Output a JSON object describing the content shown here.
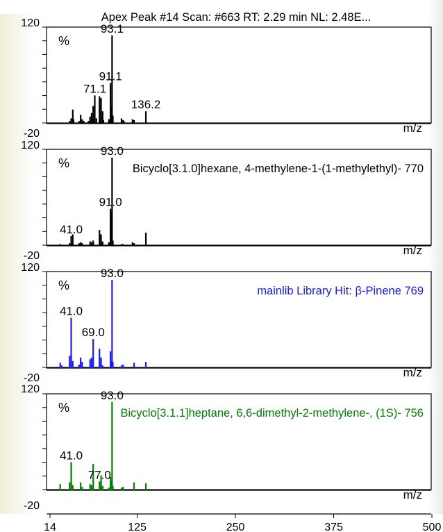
{
  "chart_data": {
    "type": "stacked-spectra",
    "title": "Apex Peak #14 Scan: #663   RT: 2.29 min  NL: 2.48E...",
    "xlim": [
      14,
      500
    ],
    "x_ticks": [
      14,
      125,
      250,
      375,
      500
    ],
    "x_tick_labels": [
      "14",
      "125",
      "250",
      "375",
      "500"
    ],
    "panels": [
      {
        "name": "",
        "label_text": "",
        "percent_label": "%",
        "color": "#000000",
        "ylim": [
          -20,
          120
        ],
        "y_tick_labels": [
          "120",
          "-20"
        ],
        "x_unit": "m/z",
        "peaks": [
          [
            39,
            3
          ],
          [
            41,
            6
          ],
          [
            43,
            16
          ],
          [
            44,
            5
          ],
          [
            51,
            3
          ],
          [
            53,
            10
          ],
          [
            55,
            5
          ],
          [
            57,
            3
          ],
          [
            63,
            3
          ],
          [
            65,
            8
          ],
          [
            67,
            12
          ],
          [
            69,
            20
          ],
          [
            71,
            32
          ],
          [
            73,
            6
          ],
          [
            77,
            31
          ],
          [
            79,
            29
          ],
          [
            80,
            8
          ],
          [
            81,
            14
          ],
          [
            82,
            4
          ],
          [
            89,
            5
          ],
          [
            91,
            46
          ],
          [
            92,
            20
          ],
          [
            93,
            100
          ],
          [
            94,
            9
          ],
          [
            105,
            6
          ],
          [
            107,
            4
          ],
          [
            108,
            3
          ],
          [
            119,
            5
          ],
          [
            121,
            4
          ],
          [
            136,
            14
          ]
        ],
        "annotations": [
          {
            "x": 93,
            "y": 100,
            "text": "93.1"
          },
          {
            "x": 91,
            "y": 46,
            "text": "91.1"
          },
          {
            "x": 71,
            "y": 32,
            "text": "71.1"
          },
          {
            "x": 136,
            "y": 14,
            "text": "136.2"
          }
        ]
      },
      {
        "name": "",
        "label_text": "Bicyclo[3.1.0]hexane, 4-methylene-1-(1-methylethyl)- 770",
        "percent_label": "%",
        "color": "#000000",
        "ylim": [
          -20,
          120
        ],
        "y_tick_labels": [
          "120",
          "-20"
        ],
        "x_unit": "m/z",
        "peaks": [
          [
            27,
            2
          ],
          [
            39,
            3
          ],
          [
            41,
            11
          ],
          [
            43,
            13
          ],
          [
            51,
            3
          ],
          [
            53,
            4
          ],
          [
            55,
            3
          ],
          [
            65,
            5
          ],
          [
            67,
            4
          ],
          [
            69,
            6
          ],
          [
            77,
            18
          ],
          [
            79,
            13
          ],
          [
            80,
            3
          ],
          [
            81,
            5
          ],
          [
            89,
            4
          ],
          [
            91,
            42
          ],
          [
            92,
            38
          ],
          [
            93,
            100
          ],
          [
            94,
            6
          ],
          [
            105,
            2
          ],
          [
            107,
            2
          ],
          [
            119,
            4
          ],
          [
            121,
            3
          ],
          [
            136,
            15
          ]
        ],
        "annotations": [
          {
            "x": 93,
            "y": 100,
            "text": "93.0"
          },
          {
            "x": 91,
            "y": 42,
            "text": "91.0"
          },
          {
            "x": 41,
            "y": 11,
            "text": "41.0"
          }
        ]
      },
      {
        "name": "mainlib Library Hit: β-Pinene 769",
        "label_text": "mainlib Library Hit: β-Pinene 769",
        "percent_label": "%",
        "color": "#1a1aff",
        "ylim": [
          -20,
          120
        ],
        "y_tick_labels": [
          "120",
          "-20"
        ],
        "x_unit": "m/z",
        "peaks": [
          [
            27,
            6
          ],
          [
            29,
            3
          ],
          [
            39,
            14
          ],
          [
            41,
            57
          ],
          [
            43,
            8
          ],
          [
            51,
            4
          ],
          [
            53,
            12
          ],
          [
            55,
            7
          ],
          [
            65,
            10
          ],
          [
            67,
            12
          ],
          [
            69,
            33
          ],
          [
            77,
            22
          ],
          [
            79,
            12
          ],
          [
            80,
            3
          ],
          [
            81,
            3
          ],
          [
            91,
            19
          ],
          [
            92,
            8
          ],
          [
            93,
            100
          ],
          [
            94,
            7
          ],
          [
            105,
            3
          ],
          [
            107,
            4
          ],
          [
            121,
            6
          ],
          [
            136,
            7
          ]
        ],
        "annotations": [
          {
            "x": 93,
            "y": 100,
            "text": "93.0"
          },
          {
            "x": 41,
            "y": 57,
            "text": "41.0"
          },
          {
            "x": 69,
            "y": 33,
            "text": "69.0"
          }
        ]
      },
      {
        "name": "Bicyclo[3.1.1]heptane, 6,6-dimethyl-2-methylene-, (1S)- 756",
        "label_text": "Bicyclo[3.1.1]heptane, 6,6-dimethyl-2-methylene-, (1S)- 756",
        "percent_label": "%",
        "color": "#008000",
        "ylim": [
          -20,
          120
        ],
        "y_tick_labels": [
          "120",
          "-20"
        ],
        "x_unit": "m/z",
        "peaks": [
          [
            27,
            7
          ],
          [
            39,
            9
          ],
          [
            41,
            32
          ],
          [
            43,
            6
          ],
          [
            53,
            9
          ],
          [
            55,
            4
          ],
          [
            65,
            7
          ],
          [
            67,
            6
          ],
          [
            69,
            30
          ],
          [
            77,
            10
          ],
          [
            79,
            17
          ],
          [
            80,
            4
          ],
          [
            81,
            5
          ],
          [
            89,
            3
          ],
          [
            91,
            15
          ],
          [
            92,
            11
          ],
          [
            93,
            100
          ],
          [
            94,
            5
          ],
          [
            105,
            3
          ],
          [
            107,
            4
          ],
          [
            121,
            9
          ],
          [
            136,
            8
          ]
        ],
        "annotations": [
          {
            "x": 93,
            "y": 100,
            "text": "93.0"
          },
          {
            "x": 41,
            "y": 32,
            "text": "41.0"
          },
          {
            "x": 77,
            "y": 10,
            "text": "77.0"
          }
        ]
      }
    ]
  }
}
